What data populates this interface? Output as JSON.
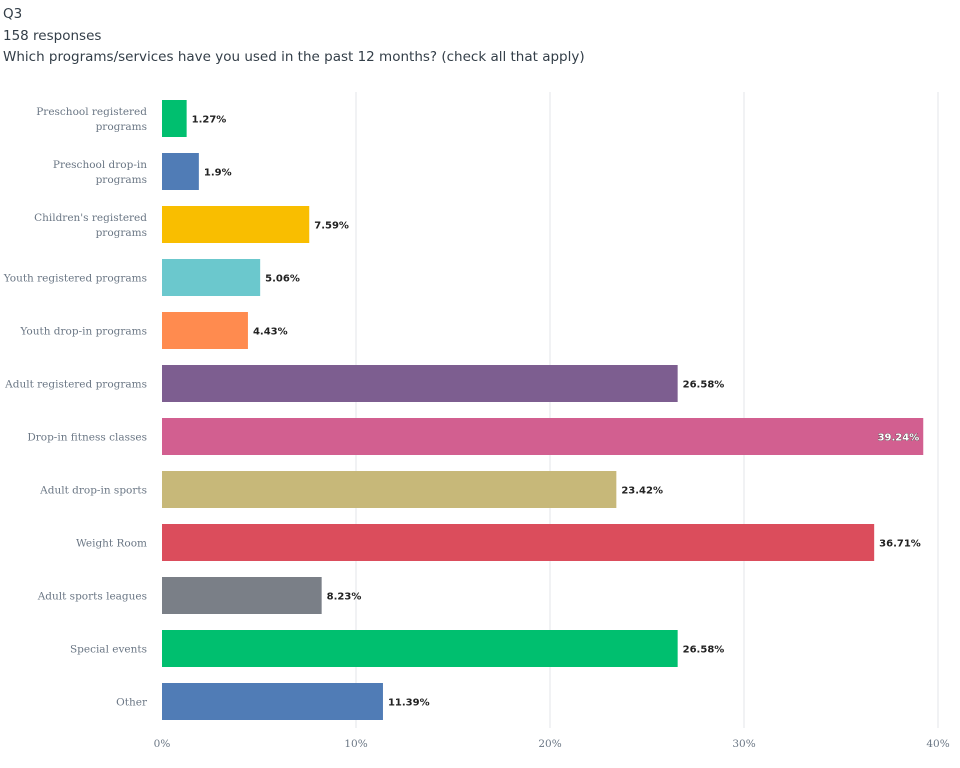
{
  "header": {
    "question": "Q3",
    "responses": "158 responses",
    "prompt": "Which programs/services have you used in the past 12 months? (check all that apply)"
  },
  "chart_data": {
    "type": "bar",
    "orientation": "horizontal",
    "title": "Which programs/services have you used in the past 12 months? (check all that apply)",
    "xlabel": "",
    "ylabel": "",
    "xlim": [
      0,
      40
    ],
    "tick_values": [
      0,
      10,
      20,
      30,
      40
    ],
    "tick_labels": [
      "0%",
      "10%",
      "20%",
      "30%",
      "40%"
    ],
    "grid": true,
    "categories": [
      [
        "Preschool registered",
        "programs"
      ],
      [
        "Preschool drop-in",
        "programs"
      ],
      [
        "Children's registered",
        "programs"
      ],
      [
        "Youth registered programs"
      ],
      [
        "Youth drop-in programs"
      ],
      [
        "Adult registered programs"
      ],
      [
        "Drop-in fitness classes"
      ],
      [
        "Adult drop-in sports"
      ],
      [
        "Weight Room"
      ],
      [
        "Adult sports leagues"
      ],
      [
        "Special events"
      ],
      [
        "Other"
      ]
    ],
    "values": [
      1.27,
      1.9,
      7.59,
      5.06,
      4.43,
      26.58,
      39.24,
      23.42,
      36.71,
      8.23,
      26.58,
      11.39
    ],
    "value_labels": [
      "1.27%",
      "1.9%",
      "7.59%",
      "5.06%",
      "4.43%",
      "26.58%",
      "39.24%",
      "23.42%",
      "36.71%",
      "8.23%",
      "26.58%",
      "11.39%"
    ],
    "colors": [
      "#00bf6f",
      "#507cb6",
      "#f9be00",
      "#6bc8cd",
      "#ff8b4f",
      "#7d5e90",
      "#d25f90",
      "#c7b879",
      "#db4d5c",
      "#7a7f87",
      "#00bf6f",
      "#507cb6"
    ]
  }
}
